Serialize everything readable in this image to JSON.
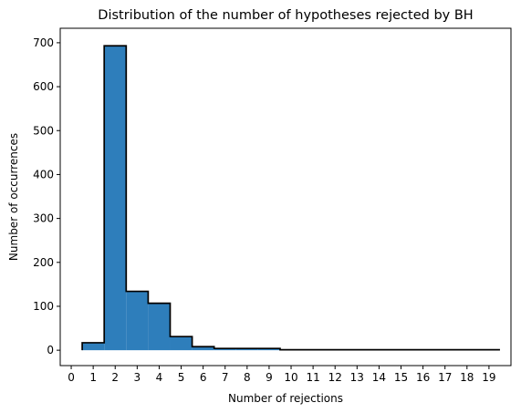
{
  "chart_data": {
    "type": "bar",
    "style": "step-histogram",
    "title": "Distribution of the number of hypotheses rejected by BH",
    "xlabel": "Number of rejections",
    "ylabel": "Number of occurrences",
    "x_ticks": [
      "0",
      "1",
      "2",
      "3",
      "4",
      "5",
      "6",
      "7",
      "8",
      "9",
      "10",
      "11",
      "12",
      "13",
      "14",
      "15",
      "16",
      "17",
      "18",
      "19"
    ],
    "y_ticks": [
      "0",
      "100",
      "200",
      "300",
      "400",
      "500",
      "600",
      "700"
    ],
    "xlim": [
      -0.5,
      20.0
    ],
    "ylim": [
      -35,
      733
    ],
    "grid": false,
    "bin_width": 1,
    "bins": [
      {
        "x": 1,
        "value": 17
      },
      {
        "x": 2,
        "value": 693
      },
      {
        "x": 3,
        "value": 134
      },
      {
        "x": 4,
        "value": 107
      },
      {
        "x": 5,
        "value": 31
      },
      {
        "x": 6,
        "value": 8
      },
      {
        "x": 7,
        "value": 4
      },
      {
        "x": 8,
        "value": 4
      },
      {
        "x": 9,
        "value": 4
      },
      {
        "x": 10,
        "value": 1
      },
      {
        "x": 11,
        "value": 1
      },
      {
        "x": 12,
        "value": 1
      },
      {
        "x": 13,
        "value": 1
      },
      {
        "x": 14,
        "value": 1
      },
      {
        "x": 15,
        "value": 1
      },
      {
        "x": 16,
        "value": 1
      },
      {
        "x": 17,
        "value": 1
      },
      {
        "x": 18,
        "value": 1
      },
      {
        "x": 19,
        "value": 1
      }
    ],
    "fill_color": "#2e7ebb",
    "edge_color": "#000000"
  }
}
